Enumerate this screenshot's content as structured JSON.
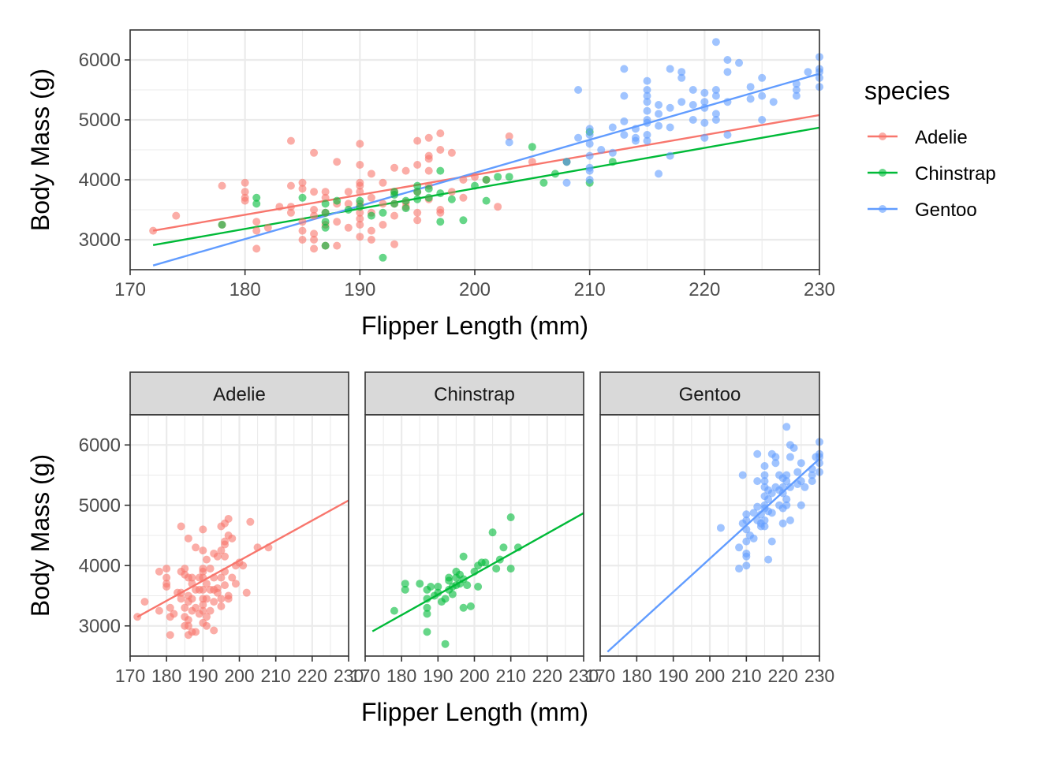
{
  "chart_data": [
    {
      "type": "scatter",
      "panel": "combined",
      "xlabel": "Flipper Length (mm)",
      "ylabel": "Body Mass (g)",
      "xlim": [
        170,
        230
      ],
      "ylim": [
        2500,
        6500
      ],
      "x_ticks": [
        170,
        180,
        190,
        200,
        210,
        220,
        230
      ],
      "y_ticks": [
        3000,
        4000,
        5000,
        6000
      ],
      "grid": true,
      "legend": {
        "title": "species",
        "position": "right",
        "entries": [
          "Adelie",
          "Chinstrap",
          "Gentoo"
        ]
      },
      "trend_lines": [
        {
          "species": "Adelie",
          "x": [
            172,
            230
          ],
          "y": [
            3150,
            5080
          ]
        },
        {
          "species": "Chinstrap",
          "x": [
            172,
            230
          ],
          "y": [
            2910,
            4870
          ]
        },
        {
          "species": "Gentoo",
          "x": [
            172,
            230
          ],
          "y": [
            2570,
            5770
          ]
        }
      ]
    },
    {
      "type": "scatter",
      "panel": "faceted",
      "facets": [
        "Adelie",
        "Chinstrap",
        "Gentoo"
      ],
      "xlabel": "Flipper Length (mm)",
      "ylabel": "Body Mass (g)",
      "xlim": [
        170,
        230
      ],
      "ylim": [
        2500,
        6500
      ],
      "x_ticks": [
        170,
        180,
        190,
        200,
        210,
        220,
        230
      ],
      "y_ticks": [
        3000,
        4000,
        5000,
        6000
      ],
      "grid": true
    }
  ],
  "species": [
    {
      "name": "Adelie",
      "color": "#F8766D",
      "trend": {
        "x": [
          172,
          230
        ],
        "y": [
          3150,
          5080
        ]
      },
      "points": [
        [
          172,
          3150
        ],
        [
          174,
          3400
        ],
        [
          178,
          3900
        ],
        [
          178,
          3250
        ],
        [
          180,
          3950
        ],
        [
          180,
          3800
        ],
        [
          180,
          3700
        ],
        [
          180,
          3650
        ],
        [
          181,
          3300
        ],
        [
          181,
          3150
        ],
        [
          181,
          2850
        ],
        [
          182,
          3200
        ],
        [
          183,
          3550
        ],
        [
          184,
          4650
        ],
        [
          184,
          3900
        ],
        [
          184,
          3450
        ],
        [
          184,
          3550
        ],
        [
          185,
          3950
        ],
        [
          185,
          3300
        ],
        [
          185,
          3150
        ],
        [
          185,
          3000
        ],
        [
          185,
          3850
        ],
        [
          186,
          4450
        ],
        [
          186,
          3800
        ],
        [
          186,
          3500
        ],
        [
          186,
          3100
        ],
        [
          186,
          3000
        ],
        [
          186,
          2850
        ],
        [
          186,
          3400
        ],
        [
          187,
          3700
        ],
        [
          187,
          3450
        ],
        [
          187,
          3250
        ],
        [
          187,
          2900
        ],
        [
          187,
          3800
        ],
        [
          188,
          3300
        ],
        [
          188,
          3600
        ],
        [
          188,
          2900
        ],
        [
          188,
          4300
        ],
        [
          189,
          3800
        ],
        [
          189,
          3200
        ],
        [
          189,
          3600
        ],
        [
          190,
          4600
        ],
        [
          190,
          4250
        ],
        [
          190,
          3950
        ],
        [
          190,
          3900
        ],
        [
          190,
          3800
        ],
        [
          190,
          3600
        ],
        [
          190,
          3450
        ],
        [
          190,
          3350
        ],
        [
          190,
          3250
        ],
        [
          190,
          3050
        ],
        [
          191,
          3700
        ],
        [
          191,
          3450
        ],
        [
          191,
          3150
        ],
        [
          191,
          3000
        ],
        [
          191,
          4100
        ],
        [
          192,
          3950
        ],
        [
          192,
          3600
        ],
        [
          192,
          3250
        ],
        [
          193,
          4200
        ],
        [
          193,
          3800
        ],
        [
          193,
          3600
        ],
        [
          193,
          2925
        ],
        [
          193,
          3400
        ],
        [
          194,
          4150
        ],
        [
          194,
          3625
        ],
        [
          194,
          3550
        ],
        [
          195,
          4650
        ],
        [
          195,
          4250
        ],
        [
          195,
          3800
        ],
        [
          195,
          3450
        ],
        [
          195,
          3325
        ],
        [
          196,
          4700
        ],
        [
          196,
          4400
        ],
        [
          196,
          4350
        ],
        [
          196,
          4150
        ],
        [
          196,
          3900
        ],
        [
          196,
          3675
        ],
        [
          197,
          4775
        ],
        [
          197,
          4500
        ],
        [
          197,
          3500
        ],
        [
          197,
          3450
        ],
        [
          198,
          4450
        ],
        [
          198,
          3800
        ],
        [
          199,
          4000
        ],
        [
          199,
          3700
        ],
        [
          200,
          4050
        ],
        [
          201,
          4000
        ],
        [
          202,
          3550
        ],
        [
          203,
          4725
        ],
        [
          205,
          4300
        ],
        [
          208,
          4300
        ]
      ]
    },
    {
      "name": "Chinstrap",
      "color": "#00BA38",
      "trend": {
        "x": [
          172,
          230
        ],
        "y": [
          2910,
          4870
        ]
      },
      "points": [
        [
          178,
          3250
        ],
        [
          181,
          3700
        ],
        [
          181,
          3600
        ],
        [
          185,
          3700
        ],
        [
          187,
          3300
        ],
        [
          187,
          3200
        ],
        [
          187,
          2900
        ],
        [
          187,
          3450
        ],
        [
          187,
          3600
        ],
        [
          188,
          3650
        ],
        [
          189,
          3500
        ],
        [
          190,
          3550
        ],
        [
          190,
          3650
        ],
        [
          191,
          3400
        ],
        [
          192,
          3450
        ],
        [
          192,
          2700
        ],
        [
          193,
          3600
        ],
        [
          193,
          3750
        ],
        [
          193,
          3800
        ],
        [
          194,
          3650
        ],
        [
          194,
          3525
        ],
        [
          195,
          3800
        ],
        [
          195,
          3900
        ],
        [
          195,
          3675
        ],
        [
          196,
          3850
        ],
        [
          196,
          3700
        ],
        [
          197,
          4150
        ],
        [
          197,
          3300
        ],
        [
          197,
          3775
        ],
        [
          198,
          3675
        ],
        [
          199,
          3325
        ],
        [
          200,
          3900
        ],
        [
          201,
          4000
        ],
        [
          201,
          3650
        ],
        [
          202,
          4050
        ],
        [
          203,
          4050
        ],
        [
          205,
          4550
        ],
        [
          206,
          3950
        ],
        [
          207,
          4100
        ],
        [
          208,
          4300
        ],
        [
          210,
          4800
        ],
        [
          210,
          3950
        ],
        [
          212,
          4300
        ]
      ]
    },
    {
      "name": "Gentoo",
      "color": "#619CFF",
      "trend": {
        "x": [
          172,
          230
        ],
        "y": [
          2570,
          5770
        ]
      },
      "points": [
        [
          203,
          4625
        ],
        [
          208,
          4300
        ],
        [
          208,
          3950
        ],
        [
          209,
          5500
        ],
        [
          209,
          4700
        ],
        [
          210,
          4850
        ],
        [
          210,
          4750
        ],
        [
          210,
          4600
        ],
        [
          210,
          4400
        ],
        [
          210,
          4200
        ],
        [
          210,
          4150
        ],
        [
          210,
          4000
        ],
        [
          211,
          4500
        ],
        [
          212,
          4875
        ],
        [
          212,
          4450
        ],
        [
          213,
          5850
        ],
        [
          213,
          5400
        ],
        [
          213,
          4975
        ],
        [
          213,
          4750
        ],
        [
          214,
          4850
        ],
        [
          214,
          4700
        ],
        [
          214,
          4650
        ],
        [
          215,
          5650
        ],
        [
          215,
          5500
        ],
        [
          215,
          5400
        ],
        [
          215,
          5300
        ],
        [
          215,
          5150
        ],
        [
          215,
          5000
        ],
        [
          215,
          4950
        ],
        [
          215,
          4750
        ],
        [
          215,
          4650
        ],
        [
          216,
          5250
        ],
        [
          216,
          5100
        ],
        [
          216,
          4900
        ],
        [
          216,
          4100
        ],
        [
          217,
          5850
        ],
        [
          217,
          5200
        ],
        [
          217,
          4875
        ],
        [
          217,
          4400
        ],
        [
          218,
          5800
        ],
        [
          218,
          5700
        ],
        [
          218,
          5300
        ],
        [
          219,
          5500
        ],
        [
          219,
          5250
        ],
        [
          219,
          5000
        ],
        [
          220,
          5450
        ],
        [
          220,
          5300
        ],
        [
          220,
          5200
        ],
        [
          220,
          4950
        ],
        [
          220,
          4700
        ],
        [
          221,
          6300
        ],
        [
          221,
          5500
        ],
        [
          221,
          5400
        ],
        [
          221,
          5100
        ],
        [
          221,
          5000
        ],
        [
          222,
          6000
        ],
        [
          222,
          5800
        ],
        [
          222,
          5300
        ],
        [
          222,
          4750
        ],
        [
          223,
          5950
        ],
        [
          224,
          5550
        ],
        [
          224,
          5350
        ],
        [
          225,
          5700
        ],
        [
          225,
          5400
        ],
        [
          225,
          5000
        ],
        [
          226,
          5300
        ],
        [
          228,
          5600
        ],
        [
          228,
          5500
        ],
        [
          228,
          5400
        ],
        [
          229,
          5800
        ],
        [
          230,
          6050
        ],
        [
          230,
          5850
        ],
        [
          230,
          5800
        ],
        [
          230,
          5700
        ],
        [
          230,
          5550
        ]
      ]
    }
  ]
}
